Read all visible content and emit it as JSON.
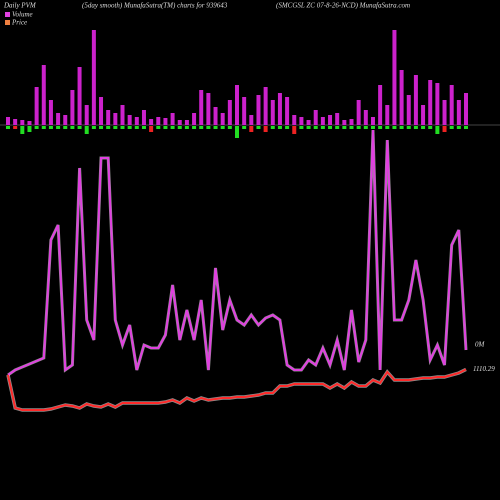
{
  "chart_data": {
    "type": "pvm",
    "title": "Daily PVM",
    "subtitle": "(5day smooth) MunafaSutra(TM) charts for 939643",
    "symbol": "(SMCGSL ZC 07-8-26-NCD) MunafaSutra.com",
    "volume_label": "0M",
    "series": [
      {
        "name": "Volume",
        "color": "#e040e0",
        "values": [
          25,
          30,
          33,
          36,
          39,
          42,
          160,
          175,
          30,
          35,
          232,
          80,
          60,
          242,
          242,
          80,
          55,
          75,
          30,
          55,
          52,
          52,
          65,
          115,
          60,
          90,
          60,
          100,
          30,
          132,
          70,
          100,
          80,
          75,
          85,
          75,
          82,
          85,
          80,
          35,
          30,
          30,
          40,
          35,
          52,
          35,
          60,
          30,
          90,
          38,
          60,
          270,
          30,
          260,
          80,
          80,
          100,
          140,
          100,
          40,
          55,
          35,
          155,
          170,
          50
        ]
      },
      {
        "name": "Price",
        "color": "#ff2a2a",
        "axis": "y2",
        "values": [
          1107.5,
          1091,
          1090,
          1090,
          1090,
          1090,
          1090.5,
          1091.5,
          1092.5,
          1092,
          1091,
          1093,
          1092,
          1091.5,
          1093,
          1091.5,
          1093.5,
          1093.5,
          1093.5,
          1093.5,
          1093.5,
          1093.5,
          1094,
          1095,
          1093.5,
          1096,
          1094.5,
          1096,
          1095,
          1095.5,
          1096,
          1096,
          1096.5,
          1096.5,
          1097,
          1097.5,
          1098.5,
          1098.5,
          1102,
          1102,
          1103,
          1103,
          1103,
          1103,
          1103,
          1101,
          1103,
          1101,
          1104,
          1102,
          1102,
          1105,
          1103.5,
          1109,
          1105,
          1105,
          1105,
          1105.5,
          1106,
          1106,
          1106.5,
          1106.5,
          1107.5,
          1108.5,
          1110.29
        ],
        "value_labels": {
          "64": "1110.29"
        }
      }
    ],
    "volume_bars": [
      8,
      6,
      5,
      4,
      38,
      60,
      25,
      12,
      10,
      35,
      58,
      20,
      95,
      28,
      15,
      12,
      20,
      10,
      8,
      15,
      6,
      8,
      7,
      12,
      5,
      5,
      12,
      35,
      32,
      18,
      12,
      25,
      40,
      28,
      10,
      30,
      38,
      25,
      32,
      28,
      10,
      8,
      5,
      15,
      8,
      10,
      12,
      5,
      6,
      25,
      15,
      8,
      40,
      20,
      95,
      55,
      30,
      50,
      20,
      45,
      42,
      25,
      40,
      25,
      32
    ],
    "volume_bar_color": "#cc22cc",
    "vlim": [
      0,
      100
    ],
    "change_bars": [
      3,
      -3,
      8,
      6,
      3,
      3,
      3,
      3,
      3,
      3,
      3,
      8,
      3,
      3,
      3,
      3,
      3,
      3,
      3,
      3,
      -6,
      3,
      3,
      3,
      3,
      3,
      3,
      3,
      3,
      3,
      3,
      3,
      12,
      3,
      -6,
      3,
      -6,
      3,
      3,
      3,
      -8,
      3,
      3,
      3,
      3,
      3,
      3,
      3,
      3,
      3,
      3,
      3,
      3,
      3,
      3,
      3,
      3,
      3,
      3,
      3,
      8,
      -6,
      3,
      3,
      3
    ],
    "up_color": "#22dd22",
    "down_color": "#ee2222",
    "ylim": [
      0,
      280
    ],
    "y2lim": [
      1085,
      1115
    ]
  }
}
